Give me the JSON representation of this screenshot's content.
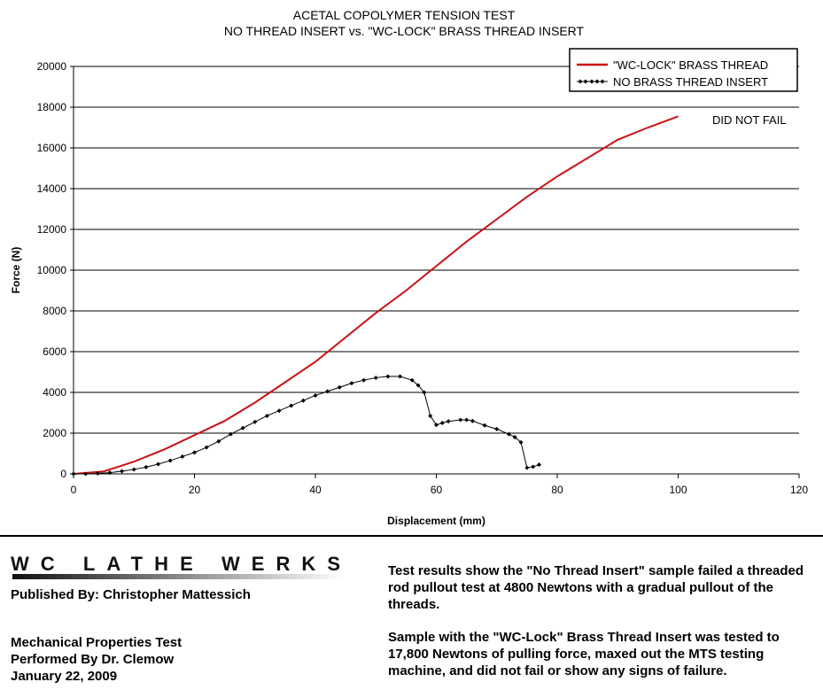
{
  "chart_data": {
    "type": "line",
    "title": [
      "ACETAL COPOLYMER TENSION TEST",
      "NO THREAD INSERT vs. \"WC-LOCK\" BRASS THREAD INSERT"
    ],
    "xlabel": "Displacement (mm)",
    "ylabel": "Force (N)",
    "xlim": [
      0,
      120
    ],
    "ylim": [
      0,
      20000
    ],
    "xticks": [
      0,
      20,
      40,
      60,
      80,
      100,
      120
    ],
    "yticks": [
      0,
      2000,
      4000,
      6000,
      8000,
      10000,
      12000,
      14000,
      16000,
      18000,
      20000
    ],
    "grid": "horizontal",
    "legend_position": "top-right",
    "annotation": "DID NOT FAIL",
    "series": [
      {
        "name": "\"WC-LOCK\" BRASS THREAD",
        "color": "#cc1111",
        "marker": "none",
        "x": [
          0,
          5,
          10,
          15,
          20,
          25,
          30,
          35,
          40,
          45,
          50,
          55,
          60,
          65,
          70,
          75,
          80,
          85,
          90,
          95,
          100
        ],
        "y": [
          0,
          120,
          600,
          1200,
          1900,
          2600,
          3500,
          4500,
          5500,
          6700,
          7900,
          9000,
          10200,
          11400,
          12500,
          13600,
          14600,
          15500,
          16400,
          17000,
          17550
        ]
      },
      {
        "name": "NO BRASS THREAD INSERT",
        "color": "#000000",
        "marker": "diamond",
        "x": [
          0,
          2,
          4,
          6,
          8,
          10,
          12,
          14,
          16,
          18,
          20,
          22,
          24,
          26,
          28,
          30,
          32,
          34,
          36,
          38,
          40,
          42,
          44,
          46,
          48,
          50,
          52,
          54,
          56,
          57,
          58,
          59,
          60,
          61,
          62,
          64,
          65,
          66,
          68,
          70,
          72,
          73,
          74,
          75,
          76,
          77
        ],
        "y": [
          0,
          0,
          20,
          60,
          130,
          220,
          330,
          480,
          650,
          850,
          1050,
          1300,
          1600,
          1950,
          2250,
          2550,
          2850,
          3100,
          3350,
          3600,
          3850,
          4050,
          4250,
          4450,
          4600,
          4720,
          4780,
          4780,
          4600,
          4350,
          4000,
          2850,
          2400,
          2500,
          2580,
          2650,
          2650,
          2600,
          2380,
          2200,
          1950,
          1800,
          1550,
          300,
          350,
          450
        ]
      }
    ]
  },
  "footer": {
    "logo_text": "WC LATHE WERKS",
    "published": "Published By:  Christopher Mattessich",
    "test_lines": [
      "Mechanical Properties Test",
      "Performed By Dr. Clemow",
      "January 22, 2009"
    ],
    "summary_1": "Test results show the \"No Thread Insert\" sample failed a threaded rod pullout test at 4800 Newtons with a gradual pullout of the threads.",
    "summary_2": "Sample with the \"WC-Lock\" Brass Thread Insert was tested to 17,800 Newtons of pulling force, maxed out the MTS testing machine, and did not fail or show any signs of failure."
  }
}
